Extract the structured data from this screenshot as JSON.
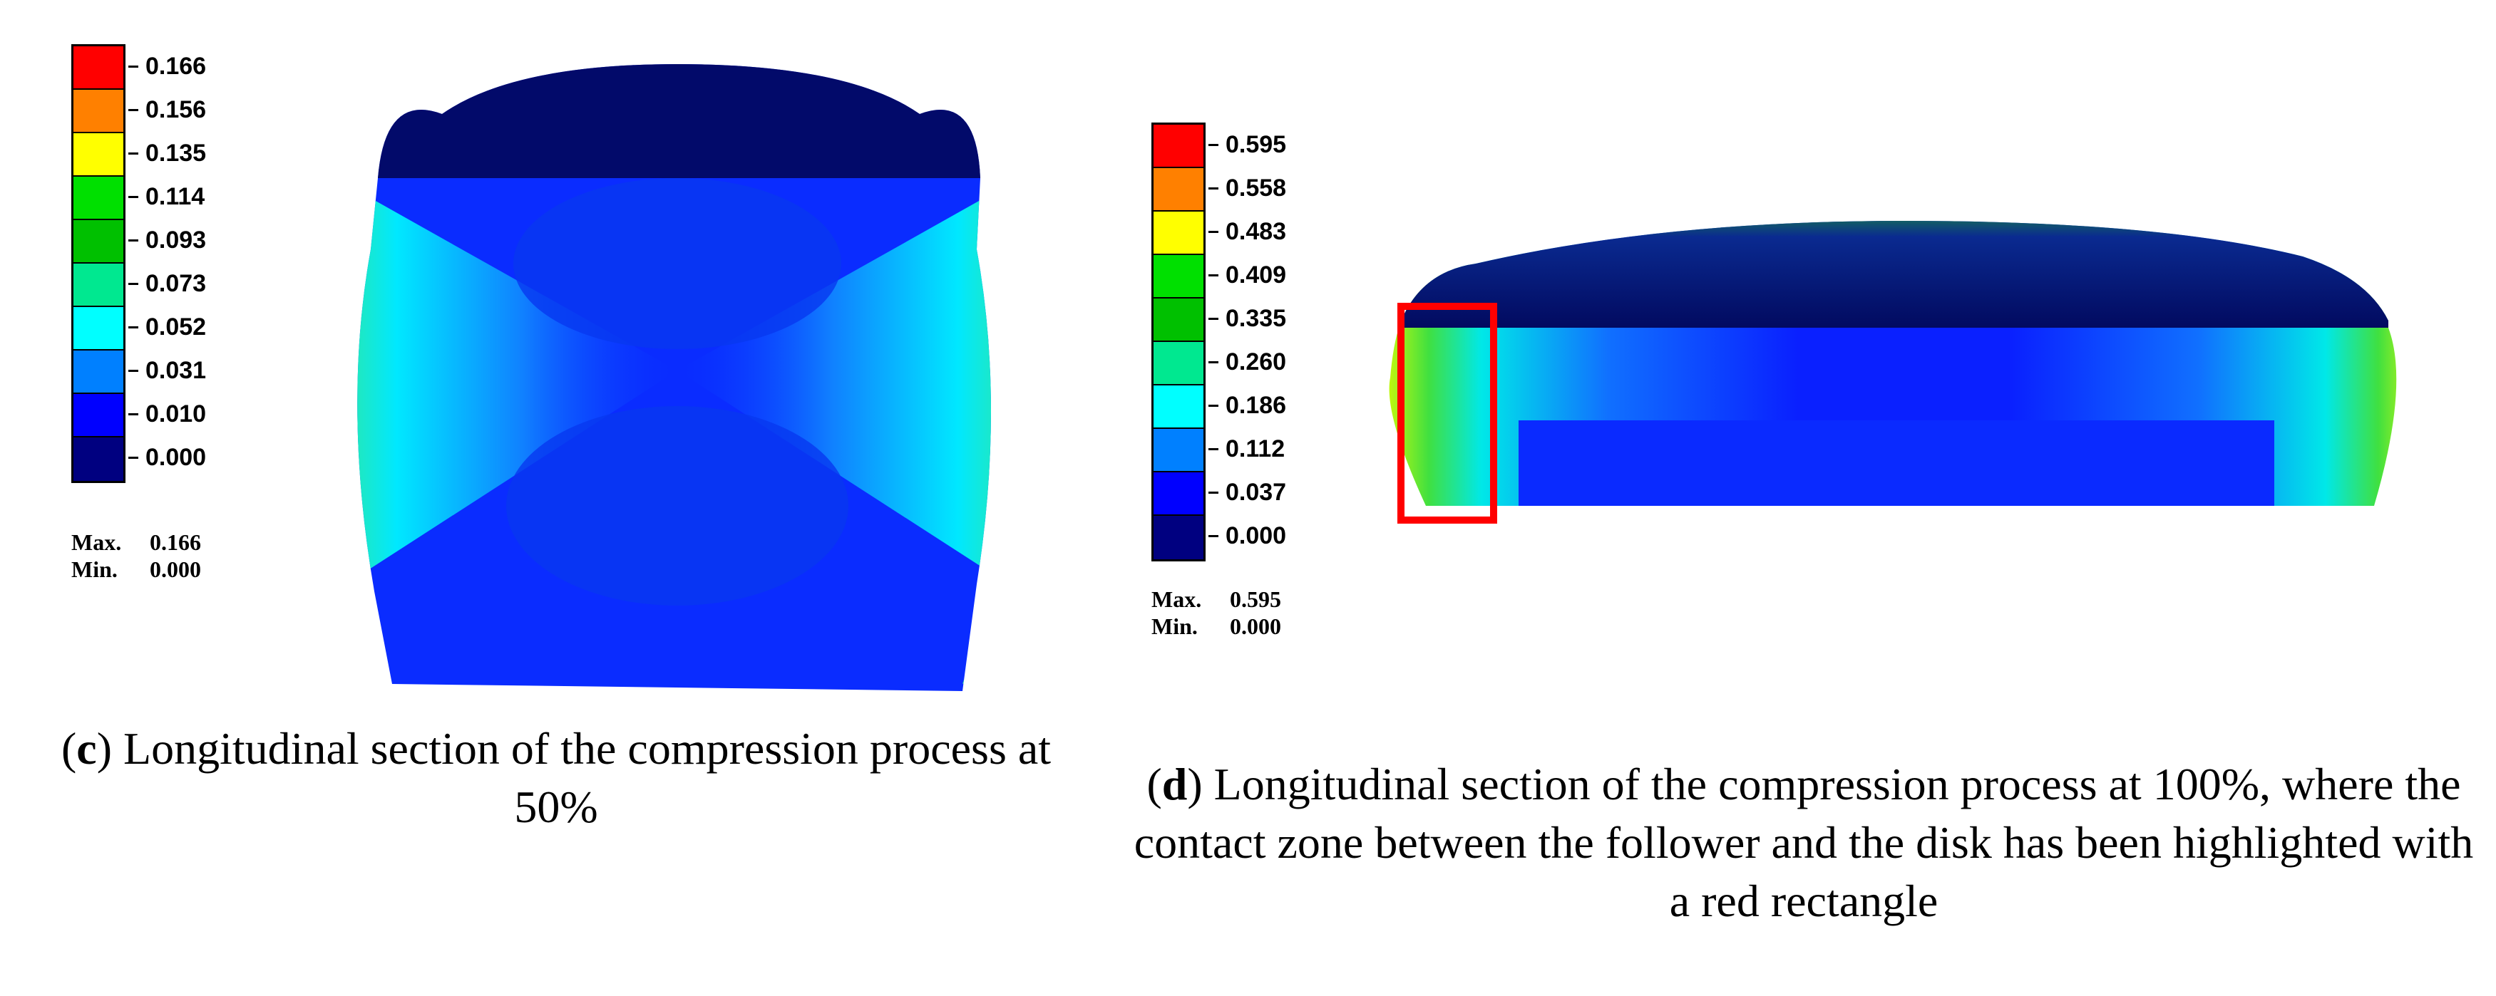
{
  "panels": {
    "c": {
      "legend": {
        "values": [
          "0.166",
          "0.156",
          "0.135",
          "0.114",
          "0.093",
          "0.073",
          "0.052",
          "0.031",
          "0.010",
          "0.000"
        ],
        "colors": [
          "#ff0000",
          "#ff8000",
          "#ffff00",
          "#00e000",
          "#00c000",
          "#00e890",
          "#00ffff",
          "#0080ff",
          "#0000ff",
          "#000080"
        ],
        "max_label": "Max.",
        "max_value": "0.166",
        "min_label": "Min.",
        "min_value": "0.000"
      },
      "caption": {
        "open_paren": "(",
        "letter": "c",
        "text": ") Longitudinal section of the compression process at 50%"
      }
    },
    "d": {
      "legend": {
        "values": [
          "0.595",
          "0.558",
          "0.483",
          "0.409",
          "0.335",
          "0.260",
          "0.186",
          "0.112",
          "0.037",
          "0.000"
        ],
        "colors": [
          "#ff0000",
          "#ff8000",
          "#ffff00",
          "#00e000",
          "#00c000",
          "#00e890",
          "#00ffff",
          "#0080ff",
          "#0000ff",
          "#000080"
        ],
        "max_label": "Max.",
        "max_value": "0.595",
        "min_label": "Min.",
        "min_value": "0.000"
      },
      "caption": {
        "open_paren": "(",
        "letter": "d",
        "text": ") Longitudinal section of the compression process at 100%, where the contact zone between the follower and the disk has been highlighted with a red rectangle"
      },
      "highlight_color": "#ff0000"
    }
  }
}
